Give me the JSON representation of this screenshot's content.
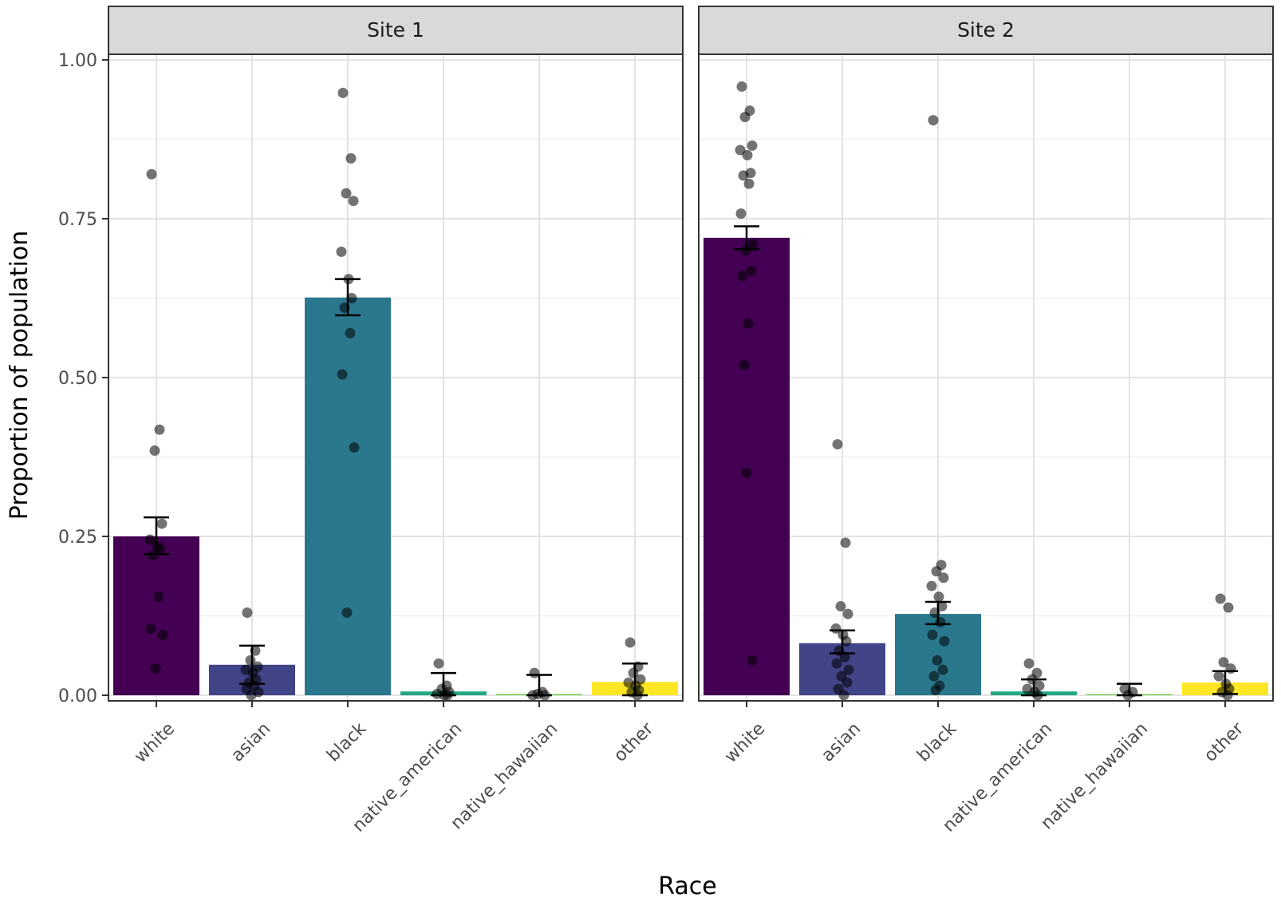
{
  "chart_data": {
    "type": "bar",
    "facets": [
      "Site 1",
      "Site 2"
    ],
    "categories": [
      "white",
      "asian",
      "black",
      "native_american",
      "native_hawaiian",
      "other"
    ],
    "xlabel": "Race",
    "ylabel": "Proportion of population",
    "ylim": [
      0,
      1.0
    ],
    "yticks": [
      0,
      0.25,
      0.5,
      0.75,
      1.0
    ],
    "ytick_labels": [
      "0.00",
      "0.25",
      "0.50",
      "0.75",
      "1.00"
    ],
    "grid": true,
    "colors": [
      "#440154",
      "#414487",
      "#2a788e",
      "#22a884",
      "#7ad151",
      "#fde725"
    ],
    "series": [
      {
        "name": "Site 1",
        "values": [
          0.25,
          0.048,
          0.626,
          0.006,
          0.002,
          0.021
        ],
        "se_low": [
          0.222,
          0.018,
          0.598,
          0.0,
          0.0,
          0.0
        ],
        "se_high": [
          0.28,
          0.078,
          0.655,
          0.035,
          0.032,
          0.05
        ],
        "points": [
          [
            0.82,
            0.418,
            0.385,
            0.27,
            0.245,
            0.235,
            0.23,
            0.22,
            0.155,
            0.105,
            0.095,
            0.042
          ],
          [
            0.13,
            0.07,
            0.055,
            0.045,
            0.04,
            0.035,
            0.025,
            0.02,
            0.015,
            0.01,
            0.005,
            0.0
          ],
          [
            0.948,
            0.845,
            0.79,
            0.778,
            0.698,
            0.655,
            0.625,
            0.61,
            0.57,
            0.505,
            0.39,
            0.13
          ],
          [
            0.05,
            0.015,
            0.01,
            0.005,
            0.002,
            0.0,
            0.0
          ],
          [
            0.035,
            0.005,
            0.002,
            0.0,
            0.0
          ],
          [
            0.083,
            0.045,
            0.035,
            0.025,
            0.02,
            0.015,
            0.008,
            0.005,
            0.0
          ]
        ]
      },
      {
        "name": "Site 2",
        "values": [
          0.72,
          0.082,
          0.128,
          0.006,
          0.001,
          0.02
        ],
        "se_low": [
          0.702,
          0.066,
          0.112,
          0.0,
          0.0,
          0.002
        ],
        "se_high": [
          0.738,
          0.102,
          0.147,
          0.025,
          0.018,
          0.038
        ],
        "points": [
          [
            0.958,
            0.92,
            0.91,
            0.865,
            0.858,
            0.85,
            0.822,
            0.818,
            0.805,
            0.758,
            0.71,
            0.7,
            0.668,
            0.66,
            0.585,
            0.52,
            0.35,
            0.055
          ],
          [
            0.395,
            0.24,
            0.14,
            0.128,
            0.105,
            0.095,
            0.085,
            0.07,
            0.06,
            0.05,
            0.04,
            0.03,
            0.02,
            0.01,
            0.0
          ],
          [
            0.905,
            0.205,
            0.195,
            0.185,
            0.172,
            0.155,
            0.14,
            0.13,
            0.115,
            0.095,
            0.085,
            0.055,
            0.04,
            0.03,
            0.015,
            0.008
          ],
          [
            0.05,
            0.035,
            0.025,
            0.015,
            0.01,
            0.005,
            0.0
          ],
          [
            0.01,
            0.005,
            0.0
          ],
          [
            0.152,
            0.138,
            0.052,
            0.042,
            0.03,
            0.018,
            0.01,
            0.005,
            0.0
          ]
        ]
      }
    ]
  }
}
